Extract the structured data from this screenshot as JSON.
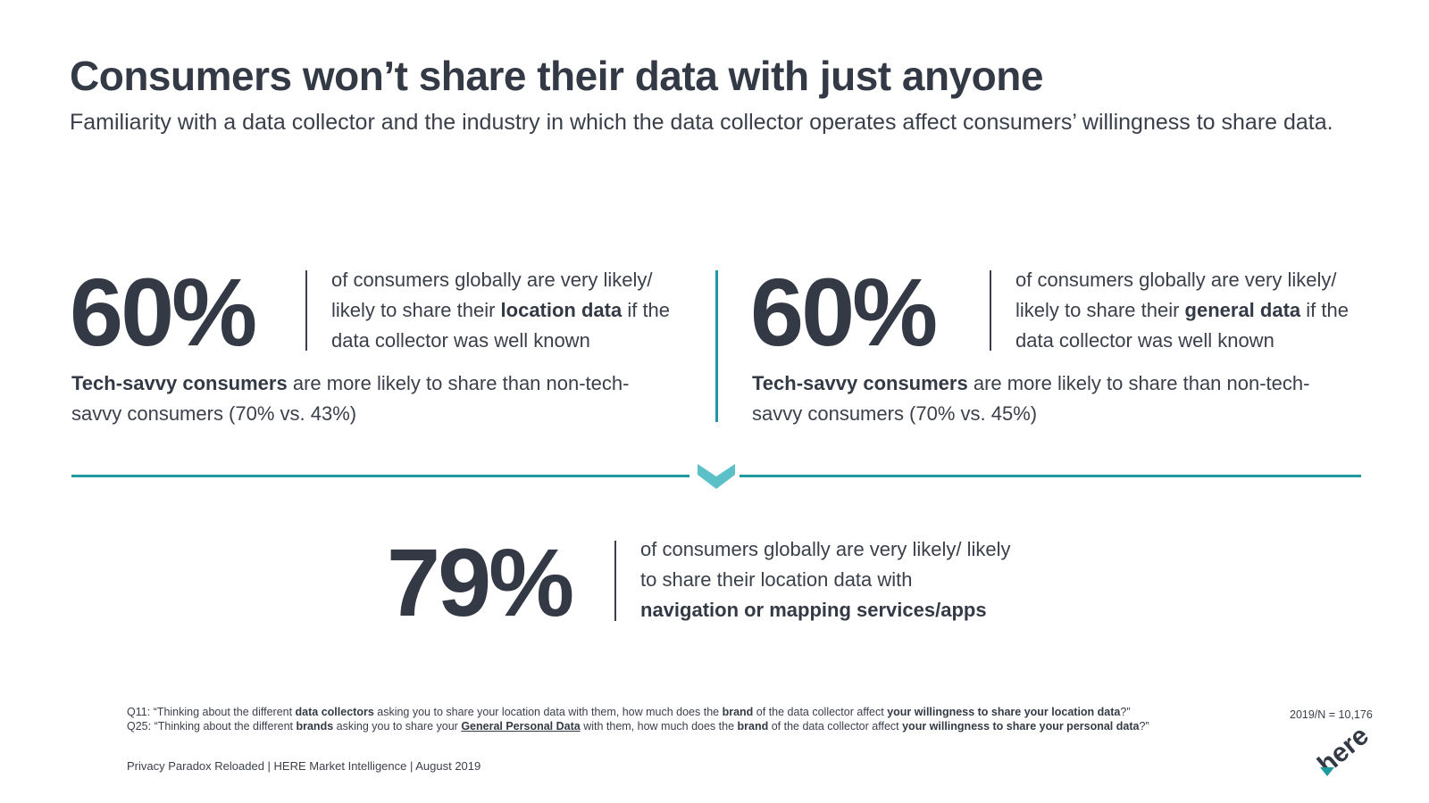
{
  "title": "Consumers won’t share their data with just anyone",
  "subtitle": "Familiarity with a data collector and the industry in which the data collector operates affect consumers’ willingness to share data.",
  "stats": [
    {
      "value": "60%",
      "text_1": "of consumers globally are very likely/ likely to share their ",
      "text_bold": "location data",
      "text_2": " if the data collector was well known",
      "note_bold": "Tech-savvy consumers",
      "note_text": " are more likely to share than non-tech-savvy consumers (70% vs. 43%)"
    },
    {
      "value": "60%",
      "text_1": "of consumers globally are very likely/ likely to share their ",
      "text_bold": "general data",
      "text_2": " if the data collector was well known",
      "note_bold": "Tech-savvy consumers",
      "note_text": " are more likely to share than non-tech-savvy consumers (70% vs. 45%)"
    },
    {
      "value": "79%",
      "text_1": "of consumers globally are very likely/ likely to share their location data with ",
      "text_bold": "navigation or mapping services/apps"
    }
  ],
  "footnotes": {
    "q11": {
      "p1": "Q11: “Thinking about the different ",
      "b1": "data collectors",
      "p2": " asking you to share your location data with them, how much does the ",
      "b2": "brand",
      "p3": " of the data collector affect ",
      "b3": "your willingness to share your location data",
      "p4": "?”"
    },
    "q25": {
      "p1": "Q25: “Thinking about the different ",
      "b1": "brands",
      "p2": " asking you to share your ",
      "u1": "General Personal Data",
      "p3": " with them, how much does the ",
      "b2": "brand",
      "p4": " of the data collector affect ",
      "b3": "your willingness to share your personal data",
      "p5": "?”"
    }
  },
  "source": "2019/N = 10,176",
  "footer": "Privacy Paradox Reloaded | HERE Market Intelligence | August 2019",
  "logo": {
    "name": "here-logo",
    "text": "here"
  },
  "colors": {
    "accent": "#1f9ba0",
    "chevron": "#5bc0c7",
    "text": "#343a45"
  }
}
